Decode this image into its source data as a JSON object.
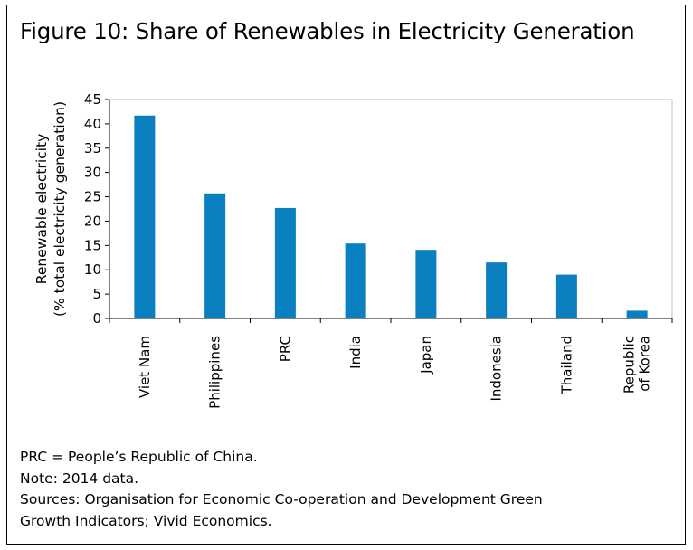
{
  "title": "Figure 10: Share of Renewables in Electricity Generation",
  "notes": [
    "PRC = People’s Republic of China.",
    "Note: 2014 data.",
    "Sources: Organisation for Economic Co-operation and Development Green",
    "Growth Indicators; Vivid Economics."
  ],
  "colors": {
    "bar": "#0a80c0",
    "axis": "#000000",
    "plot_border": "#bfbfbf"
  },
  "chart_data": {
    "type": "bar",
    "categories": [
      "Viet Nam",
      "Philippines",
      "PRC",
      "India",
      "Japan",
      "Indonesia",
      "Thailand",
      "Republic of Korea"
    ],
    "category_lines": [
      [
        "Viet Nam"
      ],
      [
        "Philippines"
      ],
      [
        "PRC"
      ],
      [
        "India"
      ],
      [
        "Japan"
      ],
      [
        "Indonesia"
      ],
      [
        "Thailand"
      ],
      [
        "Republic",
        "of Korea"
      ]
    ],
    "values": [
      41.7,
      25.7,
      22.7,
      15.4,
      14.1,
      11.5,
      9.0,
      1.6
    ],
    "ylabel": [
      "Renewable electricity",
      "(% total electricity generation)"
    ],
    "ylim": [
      0,
      45
    ],
    "yticks": [
      0,
      5,
      10,
      15,
      20,
      25,
      30,
      35,
      40,
      45
    ],
    "grid": false,
    "legend": "none"
  }
}
